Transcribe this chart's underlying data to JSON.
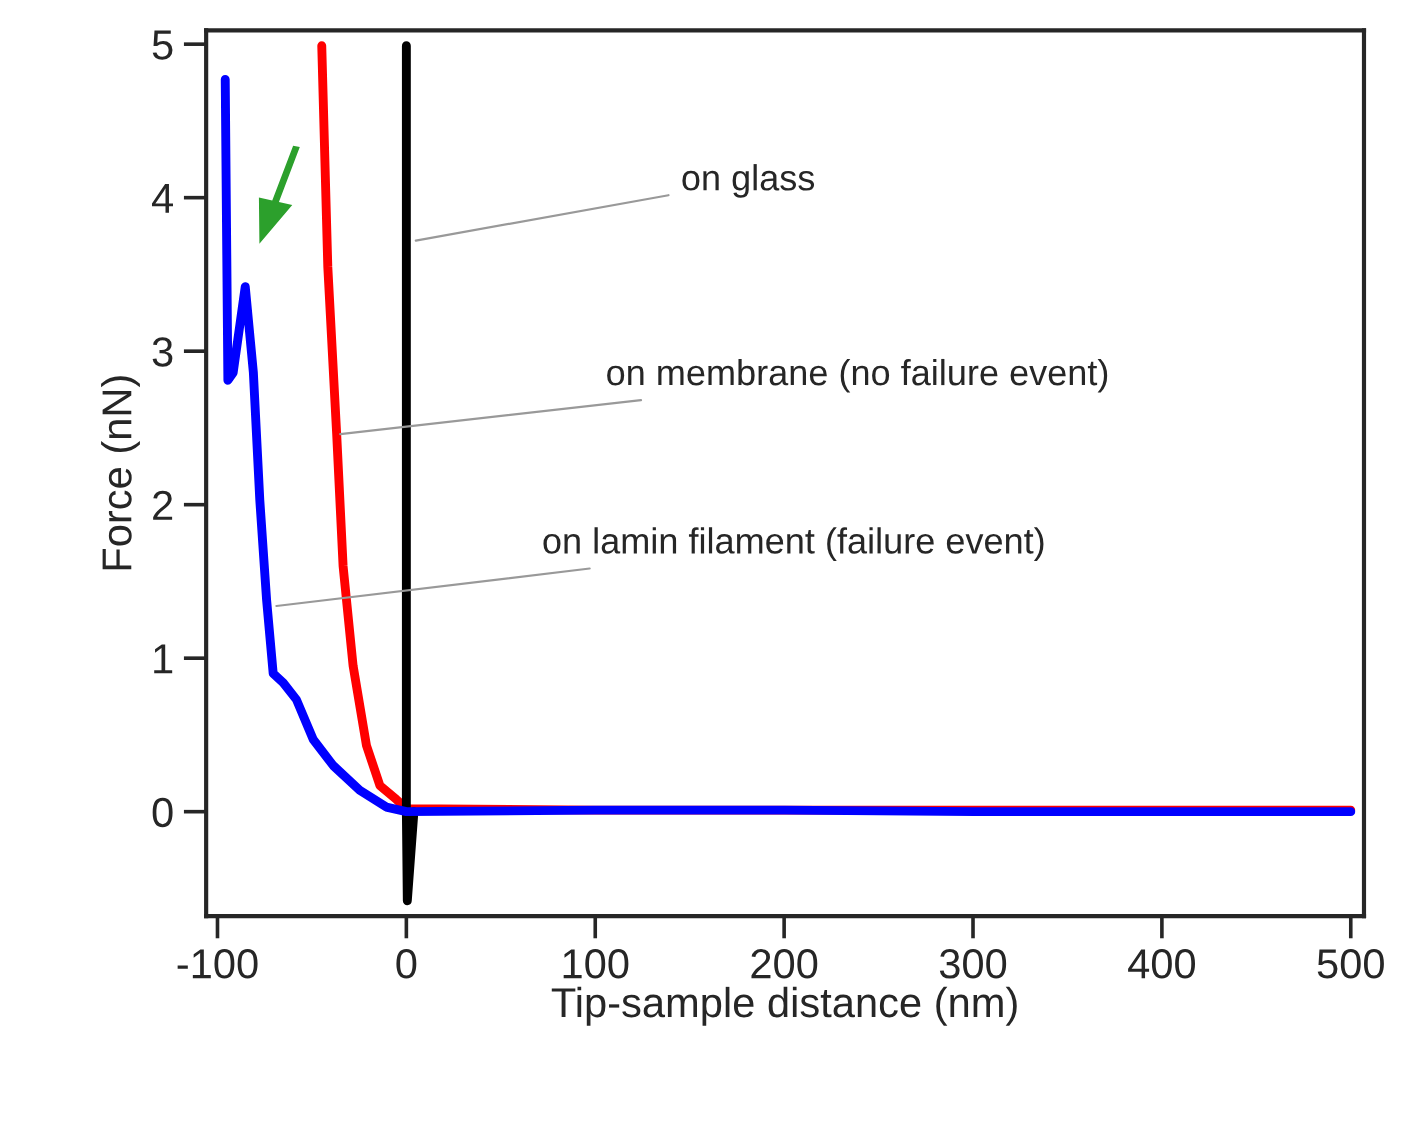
{
  "chart_data": {
    "type": "line",
    "xlabel": "Tip-sample distance (nm)",
    "ylabel": "Force (nN)",
    "xlim": [
      -106,
      507
    ],
    "ylim": [
      -0.68,
      5.09
    ],
    "xticks": [
      -100,
      0,
      100,
      200,
      300,
      400,
      500
    ],
    "yticks": [
      0,
      1,
      2,
      3,
      4,
      5
    ],
    "grid": false,
    "legend": false,
    "marker": "none",
    "line_style": "solid",
    "series": [
      {
        "color": "#ff0000",
        "x": [
          -44.8,
          -41.6,
          -36.9,
          -33.5,
          -28.2,
          -21.1,
          -14,
          -5.3,
          0,
          100,
          200,
          300,
          400,
          500
        ],
        "values": [
          4.99,
          3.55,
          2.46,
          1.6,
          0.95,
          0.43,
          0.17,
          0.08,
          0.02,
          0.01,
          0.01,
          0.01,
          0.01,
          0.01
        ]
      },
      {
        "color": "#000000",
        "x": [
          0,
          0,
          0.5,
          4
        ],
        "values": [
          4.99,
          0,
          -0.58,
          0
        ]
      },
      {
        "color": "#0000ff",
        "x": [
          -95.9,
          -94.5,
          -91.7,
          -85.3,
          -81,
          -77.6,
          -74,
          -70.5,
          -65.2,
          -58.2,
          -49.3,
          -38.7,
          -24.7,
          -10.6,
          0,
          100,
          200,
          300,
          400,
          500
        ],
        "values": [
          4.77,
          2.81,
          2.86,
          3.42,
          2.86,
          2.03,
          1.38,
          0.9,
          0.84,
          0.73,
          0.47,
          0.3,
          0.14,
          0.03,
          0,
          0.01,
          0.01,
          0,
          0,
          0
        ]
      }
    ],
    "annotations": [
      {
        "text": "on glass",
        "x": 5,
        "y": 3.72
      },
      {
        "text": "on membrane (no failure event)",
        "x": -35,
        "y": 2.46
      },
      {
        "text": "on lamin filament (failure event)",
        "x": -68.8,
        "y": 1.34
      }
    ]
  }
}
